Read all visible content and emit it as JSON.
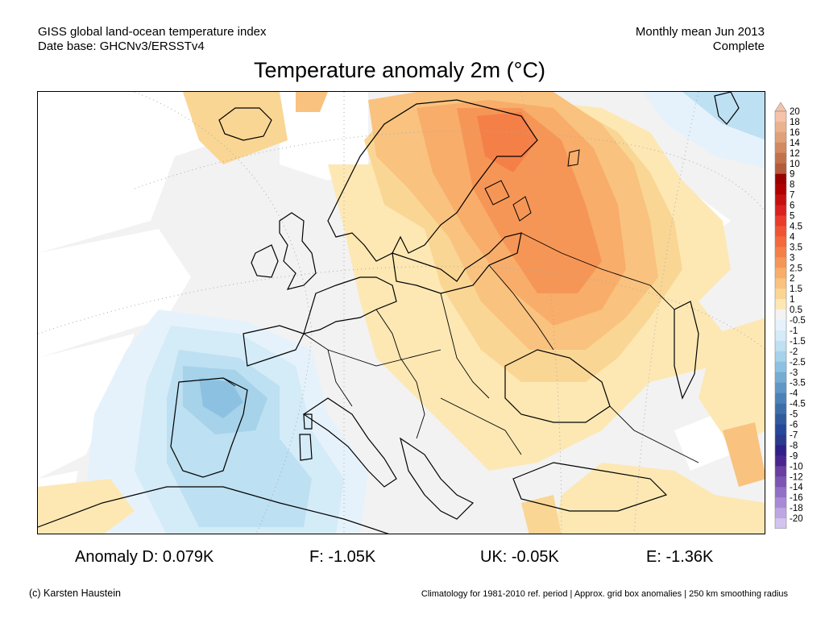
{
  "header": {
    "dataset_line1": "GISS global land-ocean temperature index",
    "dataset_line2": "Date base: GHCNv3/ERSSTv4",
    "period_line1": "Monthly mean Jun 2013",
    "period_line2": "Complete"
  },
  "title": "Temperature anomaly 2m (°C)",
  "map": {
    "region": "Europe",
    "land_outline_color": "#000000",
    "missing_data_color": "#ffffff",
    "near_zero_color": "#f2f2f2"
  },
  "colorbar": {
    "labels": [
      "20",
      "18",
      "16",
      "14",
      "12",
      "10",
      "9",
      "8",
      "7",
      "6",
      "5",
      "4.5",
      "4",
      "3.5",
      "3",
      "2.5",
      "2",
      "1.5",
      "1",
      "0.5",
      "-0.5",
      "-1",
      "-1.5",
      "-2",
      "-2.5",
      "-3",
      "-3.5",
      "-4",
      "-4.5",
      "-5",
      "-6",
      "-7",
      "-8",
      "-9",
      "-10",
      "-12",
      "-14",
      "-16",
      "-18",
      "-20"
    ],
    "colors": [
      "#f4c3a9",
      "#ebb290",
      "#e0a07a",
      "#d28a62",
      "#c2724b",
      "#b35b3a",
      "#9a0000",
      "#b00000",
      "#c61010",
      "#da2020",
      "#ea3c2c",
      "#f05434",
      "#f46a3c",
      "#f48048",
      "#f69656",
      "#f8ad6a",
      "#f9c27f",
      "#fad694",
      "#fde8b4",
      "#f3f3f3",
      "#e6f2fb",
      "#d4ebf8",
      "#bde0f2",
      "#a6d2ea",
      "#8dc1e1",
      "#76acd3",
      "#6097c6",
      "#4c82b8",
      "#3d6eaa",
      "#305b9c",
      "#27489a",
      "#2a3a8e",
      "#301f88",
      "#4a2590",
      "#6a3fa0",
      "#7d55b2",
      "#9270c6",
      "#a98ad6",
      "#bea6e2",
      "#d3c4ef"
    ]
  },
  "anomalies": {
    "domain": "Anomaly D: 0.079K",
    "france": "F: -1.05K",
    "uk": "UK: -0.05K",
    "spain": "E: -1.36K"
  },
  "footer": {
    "credit": "(c) Karsten Haustein",
    "note": "Climatology for 1981-2010 ref. period | Approx. grid box anomalies | 250 km smoothing radius"
  }
}
